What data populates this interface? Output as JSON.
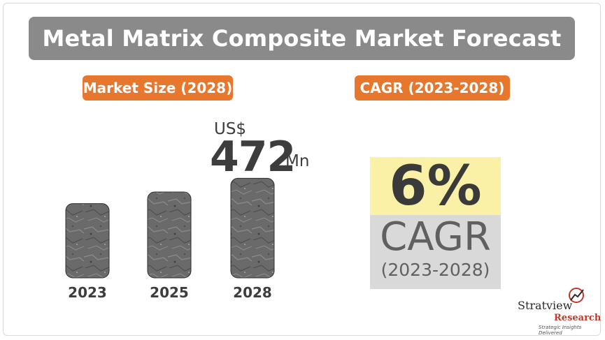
{
  "title": "Metal Matrix Composite Market Forecast",
  "market_size_label": "Market Size (2028)",
  "cagr_label": "CAGR (2023-2028)",
  "value_display": {
    "currency": "US$",
    "value": "472",
    "unit": "Mn"
  },
  "cagr_display": {
    "percent": "6%",
    "word": "CAGR",
    "years": "(2023-2028)"
  },
  "colors": {
    "title_bg": "#8a8a8a",
    "pill_bg": "#e8772e",
    "cagr_top_bg": "#fbf1a6",
    "cagr_bottom_bg": "#d9d9d9",
    "text_dark": "#3d3d3d"
  },
  "chart_data": {
    "type": "bar",
    "categories": [
      "2023",
      "2025",
      "2028"
    ],
    "values": [
      352,
      407,
      472
    ],
    "ylim": [
      0,
      480
    ]
  },
  "logo": {
    "name": "Stratview",
    "sub": "Research",
    "tagline": "Strategic Insights Delivered"
  }
}
